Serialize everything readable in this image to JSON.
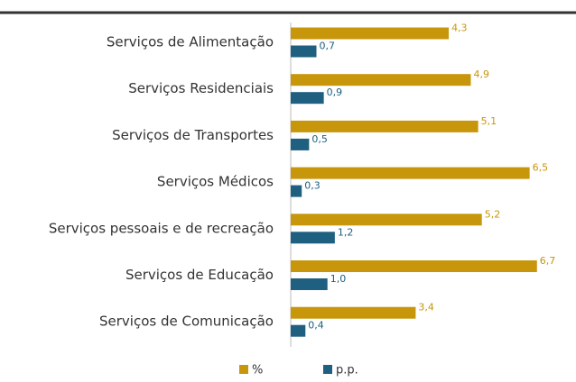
{
  "chart_data": {
    "type": "bar",
    "orientation": "horizontal",
    "categories": [
      "Serviços de Alimentação",
      "Serviços Residenciais",
      "Serviços de Transportes",
      "Serviços Médicos",
      "Serviços pessoais e de recreação",
      "Serviços de Educação",
      "Serviços de Comunicação"
    ],
    "series": [
      {
        "name": "%",
        "color": "#c8960a",
        "values": [
          4.3,
          4.9,
          5.1,
          6.5,
          5.2,
          6.7,
          3.4
        ],
        "value_labels": [
          "4,3",
          "4,9",
          "5,1",
          "6,5",
          "5,2",
          "6,7",
          "3,4"
        ]
      },
      {
        "name": "p.p.",
        "color": "#1f5f7f",
        "values": [
          0.7,
          0.9,
          0.5,
          0.3,
          1.2,
          1.0,
          0.4
        ],
        "value_labels": [
          "0,7",
          "0,9",
          "0,5",
          "0,3",
          "1,2",
          "1,0",
          "0,4"
        ]
      }
    ],
    "xlim": [
      0,
      7
    ],
    "legend": "bottom"
  }
}
